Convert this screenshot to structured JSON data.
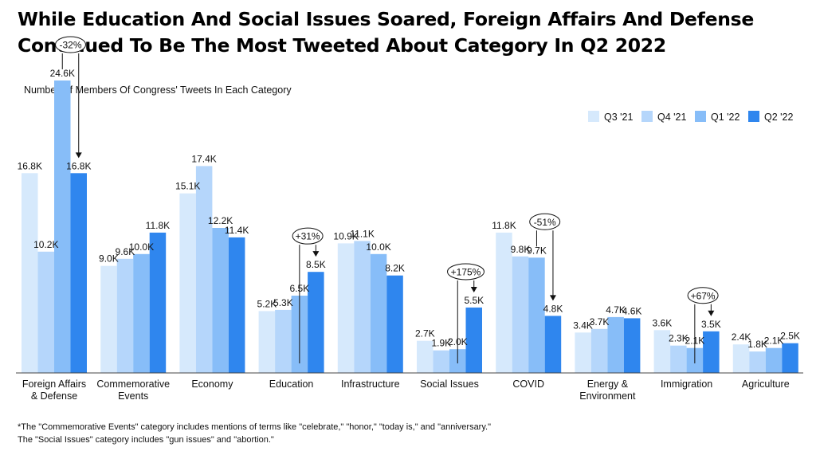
{
  "title_line1": "While Education And Social Issues Soared, Foreign Affairs And Defense",
  "title_line2": "Continued To Be The Most Tweeted About Category In Q2 2022",
  "footnotes": [
    "*The \"Commemorative Events\" category includes mentions of terms like \"celebrate,\" \"honor,\" \"today is,\" and \"anniversary.\"",
    "The \"Social Issues\" category includes \"gun issues\" and \"abortion.\""
  ],
  "chart_data": {
    "type": "bar",
    "title": "",
    "ylabel": "Number Of Members Of Congress' Tweets In Each Category",
    "xlabel": "",
    "ylim": [
      0,
      25
    ],
    "grid": false,
    "legend_position": "top-right",
    "categories": [
      [
        "Foreign Affairs",
        "& Defense"
      ],
      [
        "Commemorative",
        "Events"
      ],
      [
        "Economy"
      ],
      [
        "Education"
      ],
      [
        "Infrastructure"
      ],
      [
        "Social Issues"
      ],
      [
        "COVID"
      ],
      [
        "Energy &",
        "Environment"
      ],
      [
        "Immigration"
      ],
      [
        "Agriculture"
      ]
    ],
    "series": [
      {
        "name": "Q3 '21",
        "color": "#d6e9fc",
        "values": [
          16.8,
          9.0,
          15.1,
          5.2,
          10.9,
          2.7,
          11.8,
          3.4,
          3.6,
          2.4
        ],
        "labels": [
          "16.8K",
          "9.0K",
          "15.1K",
          "5.2K",
          "10.9K",
          "2.7K",
          "11.8K",
          "3.4K",
          "3.6K",
          "2.4K"
        ]
      },
      {
        "name": "Q4 '21",
        "color": "#b5d6fb",
        "values": [
          10.2,
          9.6,
          17.4,
          5.3,
          11.1,
          1.9,
          9.8,
          3.7,
          2.3,
          1.8
        ],
        "labels": [
          "10.2K",
          "9.6K",
          "17.4K",
          "5.3K",
          "11.1K",
          "1.9K",
          "9.8K",
          "3.7K",
          "2.3K",
          "1.8K"
        ]
      },
      {
        "name": "Q1 '22",
        "color": "#87bdf8",
        "values": [
          24.6,
          10.0,
          12.2,
          6.5,
          10.0,
          2.0,
          9.7,
          4.7,
          2.1,
          2.1
        ],
        "labels": [
          "24.6K",
          "10.0K",
          "12.2K",
          "6.5K",
          "10.0K",
          "2.0K",
          "9.7K",
          "4.7K",
          "2.1K",
          "2.1K"
        ]
      },
      {
        "name": "Q2 '22",
        "color": "#2f86ee",
        "values": [
          16.8,
          11.8,
          11.4,
          8.5,
          8.2,
          5.5,
          4.8,
          4.6,
          3.5,
          2.5
        ],
        "labels": [
          "16.8K",
          "11.8K",
          "11.4K",
          "8.5K",
          "8.2K",
          "5.5K",
          "4.8K",
          "4.6K",
          "3.5K",
          "2.5K"
        ]
      }
    ],
    "annotations": [
      {
        "category": 0,
        "text": "-32%",
        "from_series": 2,
        "to_series": 3
      },
      {
        "category": 3,
        "text": "+31%",
        "from_series": 2,
        "to_series": 3
      },
      {
        "category": 5,
        "text": "+175%",
        "from_series": 2,
        "to_series": 3
      },
      {
        "category": 6,
        "text": "-51%",
        "from_series": 2,
        "to_series": 3
      },
      {
        "category": 8,
        "text": "+67%",
        "from_series": 2,
        "to_series": 3
      }
    ]
  }
}
